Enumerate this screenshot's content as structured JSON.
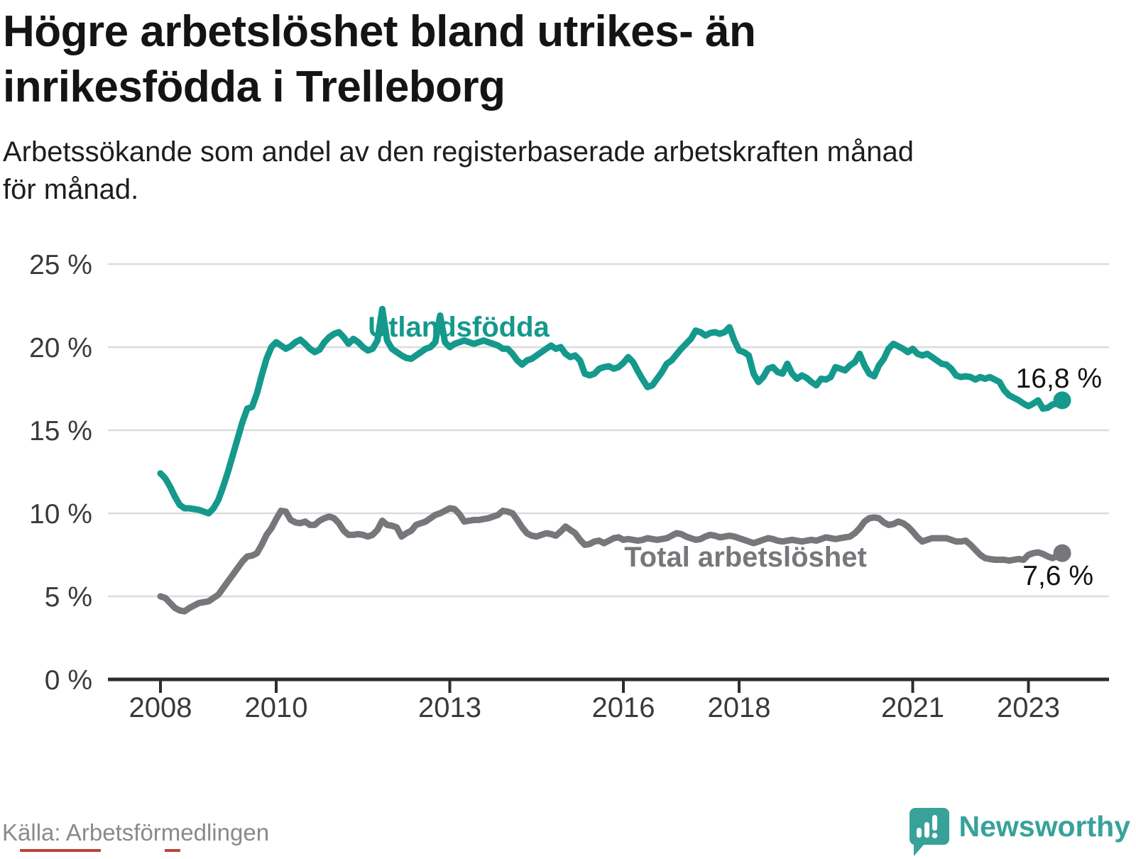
{
  "header": {
    "title_line1": "Högre arbetslöshet bland utrikes- än",
    "title_line2": "inrikesfödda i Trelleborg",
    "subtitle_line1": "Arbetssökande som andel av den registerbaserade arbetskraften månad",
    "subtitle_line2": "för månad."
  },
  "footer": {
    "source": "Källa: Arbetsförmedlingen",
    "brand": "Newsworthy",
    "brand_icon": "bar-chart-speech-bubble-icon"
  },
  "colors": {
    "foreign": "#14998c",
    "total": "#76777b",
    "axis_text": "#3a3a3a",
    "grid": "#dcdcdc",
    "axis_line": "#2d2d2d",
    "end_label": "#111111",
    "source_text": "#8a8a8a",
    "brand_teal": "#38a29a"
  },
  "chart_data": {
    "type": "line",
    "title": "Högre arbetslöshet bland utrikes- än inrikesfödda i Trelleborg",
    "subtitle": "Arbetssökande som andel av den registerbaserade arbetskraften månad för månad.",
    "xlabel": "",
    "ylabel": "",
    "grid": true,
    "legend_position": "inline",
    "ylim": [
      0,
      25
    ],
    "y_unit": "%",
    "y_ticks": [
      {
        "value": 0,
        "label": "0 %"
      },
      {
        "value": 5,
        "label": "5 %"
      },
      {
        "value": 10,
        "label": "10 %"
      },
      {
        "value": 15,
        "label": "15 %"
      },
      {
        "value": 20,
        "label": "20 %"
      },
      {
        "value": 25,
        "label": "25 %"
      }
    ],
    "x_ticks": [
      {
        "year": 2008,
        "label": "2008"
      },
      {
        "year": 2010,
        "label": "2010"
      },
      {
        "year": 2013,
        "label": "2013"
      },
      {
        "year": 2016,
        "label": "2016"
      },
      {
        "year": 2018,
        "label": "2018"
      },
      {
        "year": 2021,
        "label": "2021"
      },
      {
        "year": 2023,
        "label": "2023"
      }
    ],
    "x_start": {
      "year": 2008,
      "month": 1
    },
    "x_end": {
      "year": 2023,
      "month": 8
    },
    "series": [
      {
        "name": "Utlandsfödda",
        "color_key": "foreign",
        "end_label": "16,8 %",
        "end_value": 16.8,
        "values": [
          12.4,
          12.1,
          11.6,
          11.0,
          10.5,
          10.3,
          10.3,
          10.25,
          10.2,
          10.1,
          10.0,
          10.3,
          10.8,
          11.6,
          12.5,
          13.5,
          14.5,
          15.5,
          16.3,
          16.4,
          17.2,
          18.3,
          19.3,
          20.0,
          20.3,
          20.1,
          19.9,
          20.05,
          20.3,
          20.45,
          20.2,
          19.9,
          19.7,
          19.85,
          20.3,
          20.6,
          20.8,
          20.9,
          20.6,
          20.2,
          20.5,
          20.3,
          20.0,
          19.8,
          19.9,
          20.4,
          22.3,
          20.4,
          19.9,
          19.7,
          19.5,
          19.35,
          19.3,
          19.5,
          19.7,
          19.9,
          20.0,
          20.3,
          21.9,
          20.3,
          20.0,
          20.2,
          20.3,
          20.4,
          20.3,
          20.2,
          20.3,
          20.4,
          20.3,
          20.2,
          20.1,
          19.9,
          19.9,
          19.6,
          19.2,
          18.95,
          19.2,
          19.3,
          19.5,
          19.7,
          19.9,
          20.1,
          19.9,
          20.0,
          19.6,
          19.4,
          19.5,
          19.2,
          18.4,
          18.3,
          18.4,
          18.7,
          18.8,
          18.85,
          18.7,
          18.8,
          19.05,
          19.4,
          19.1,
          18.55,
          18.05,
          17.6,
          17.7,
          18.1,
          18.5,
          19.0,
          19.2,
          19.55,
          19.9,
          20.2,
          20.5,
          21.0,
          20.9,
          20.7,
          20.85,
          20.9,
          20.8,
          20.9,
          21.2,
          20.4,
          19.8,
          19.7,
          19.5,
          18.4,
          17.9,
          18.2,
          18.7,
          18.8,
          18.5,
          18.4,
          19.0,
          18.4,
          18.1,
          18.3,
          18.15,
          17.9,
          17.7,
          18.1,
          18.05,
          18.2,
          18.8,
          18.7,
          18.6,
          18.9,
          19.1,
          19.6,
          18.9,
          18.4,
          18.25,
          18.9,
          19.3,
          19.9,
          20.2,
          20.05,
          19.9,
          19.7,
          19.9,
          19.6,
          19.5,
          19.6,
          19.4,
          19.2,
          19.0,
          18.95,
          18.7,
          18.3,
          18.2,
          18.25,
          18.2,
          18.05,
          18.2,
          18.1,
          18.2,
          18.05,
          17.9,
          17.4,
          17.1,
          16.95,
          16.8,
          16.6,
          16.45,
          16.6,
          16.8,
          16.3,
          16.35,
          16.55,
          16.6,
          16.8
        ]
      },
      {
        "name": "Total arbetslöshet",
        "color_key": "total",
        "end_label": "7,6 %",
        "end_value": 7.6,
        "values": [
          5.0,
          4.9,
          4.6,
          4.3,
          4.15,
          4.1,
          4.3,
          4.45,
          4.6,
          4.65,
          4.7,
          4.9,
          5.1,
          5.5,
          5.9,
          6.3,
          6.7,
          7.1,
          7.4,
          7.45,
          7.6,
          8.1,
          8.7,
          9.1,
          9.65,
          10.15,
          10.1,
          9.6,
          9.45,
          9.4,
          9.5,
          9.3,
          9.3,
          9.55,
          9.7,
          9.8,
          9.7,
          9.4,
          8.95,
          8.7,
          8.7,
          8.75,
          8.7,
          8.6,
          8.7,
          9.0,
          9.55,
          9.3,
          9.25,
          9.15,
          8.6,
          8.8,
          8.95,
          9.3,
          9.4,
          9.5,
          9.7,
          9.9,
          10.0,
          10.15,
          10.3,
          10.25,
          9.95,
          9.5,
          9.55,
          9.6,
          9.6,
          9.65,
          9.7,
          9.8,
          9.9,
          10.15,
          10.1,
          10.0,
          9.6,
          9.15,
          8.8,
          8.65,
          8.6,
          8.7,
          8.8,
          8.75,
          8.65,
          8.9,
          9.2,
          9.0,
          8.8,
          8.4,
          8.1,
          8.15,
          8.3,
          8.35,
          8.2,
          8.35,
          8.5,
          8.55,
          8.4,
          8.45,
          8.4,
          8.35,
          8.4,
          8.5,
          8.45,
          8.4,
          8.45,
          8.5,
          8.65,
          8.8,
          8.75,
          8.6,
          8.5,
          8.4,
          8.45,
          8.6,
          8.7,
          8.65,
          8.55,
          8.6,
          8.65,
          8.6,
          8.5,
          8.4,
          8.3,
          8.2,
          8.3,
          8.4,
          8.5,
          8.45,
          8.35,
          8.3,
          8.35,
          8.4,
          8.35,
          8.3,
          8.35,
          8.4,
          8.35,
          8.45,
          8.55,
          8.5,
          8.45,
          8.5,
          8.55,
          8.6,
          8.8,
          9.1,
          9.5,
          9.7,
          9.75,
          9.7,
          9.45,
          9.3,
          9.35,
          9.5,
          9.4,
          9.2,
          8.9,
          8.55,
          8.3,
          8.4,
          8.5,
          8.5,
          8.5,
          8.5,
          8.4,
          8.3,
          8.3,
          8.35,
          8.1,
          7.8,
          7.5,
          7.3,
          7.25,
          7.2,
          7.2,
          7.2,
          7.15,
          7.2,
          7.25,
          7.2,
          7.5,
          7.6,
          7.65,
          7.55,
          7.4,
          7.3,
          7.45,
          7.6
        ]
      }
    ]
  }
}
